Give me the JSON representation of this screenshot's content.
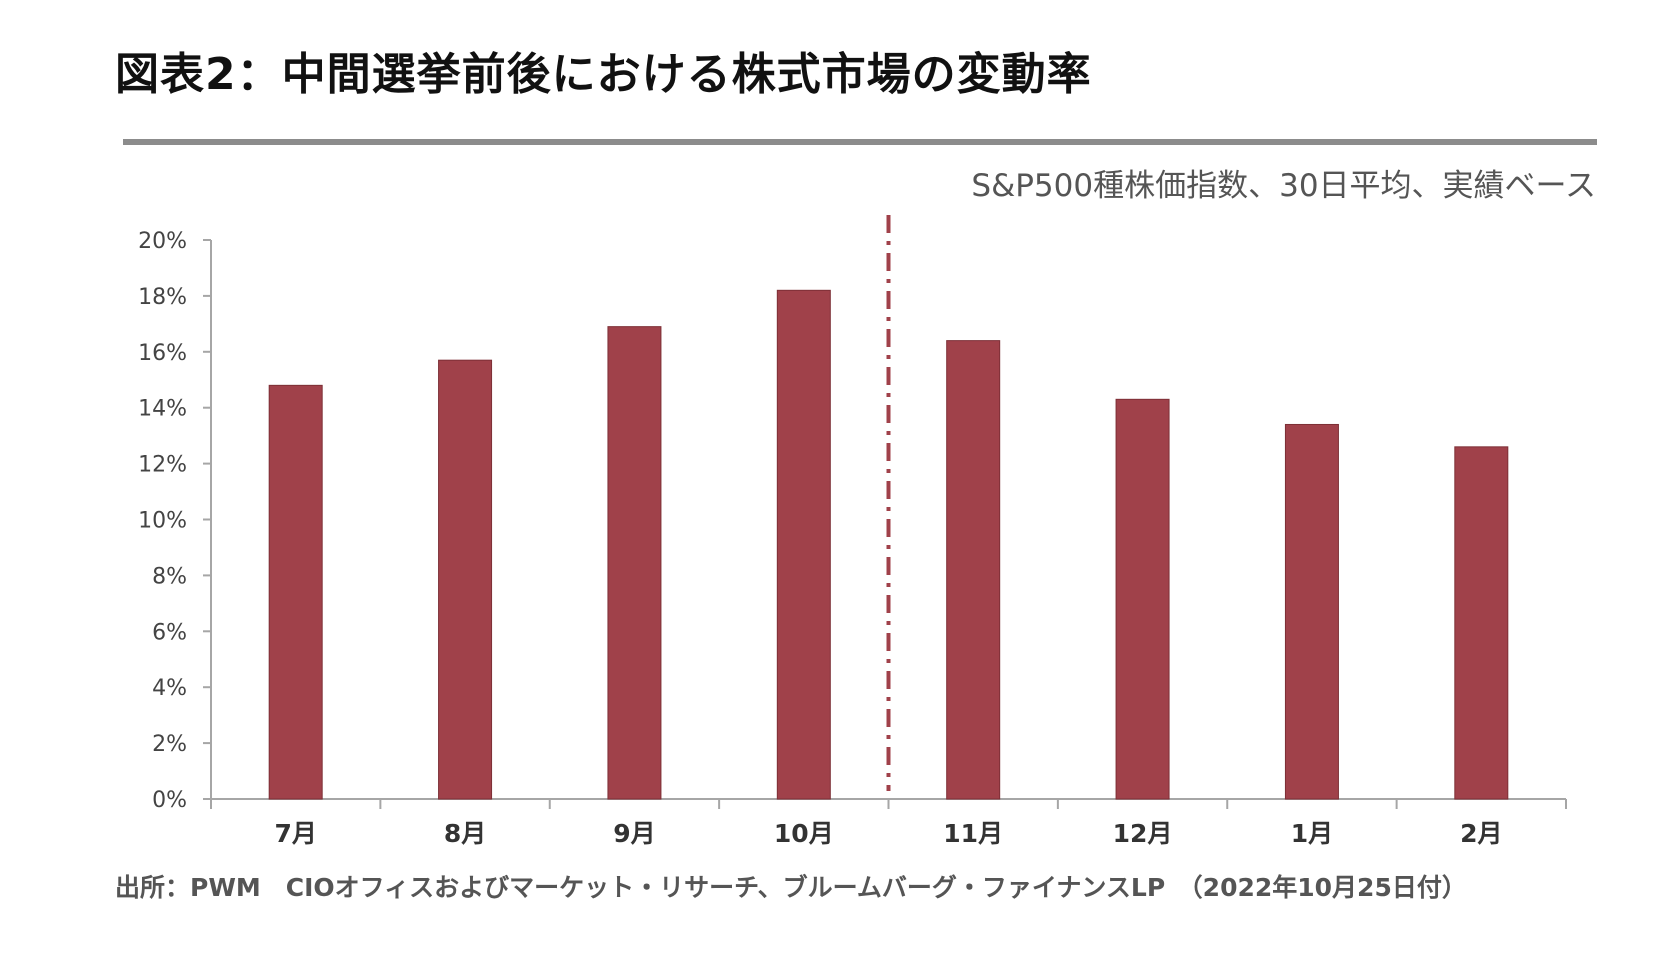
{
  "title": "図表2：中間選挙前後における株式市場の変動率",
  "subtitle": "S&P500種株価指数、30日平均、実績ベース",
  "source": "出所：PWM　CIOオフィスおよびマーケット・リサーチ、ブルームバーグ・ファイナンスLP　（2022年10月25日付）",
  "chart_data": {
    "type": "bar",
    "categories": [
      "7月",
      "8月",
      "9月",
      "10月",
      "11月",
      "12月",
      "1月",
      "2月"
    ],
    "values": [
      14.8,
      15.7,
      16.9,
      18.2,
      16.4,
      14.3,
      13.4,
      12.6
    ],
    "ylim": [
      0,
      20
    ],
    "yticks": [
      0,
      2,
      4,
      6,
      8,
      10,
      12,
      14,
      16,
      18,
      20
    ],
    "ytick_labels": [
      "0%",
      "2%",
      "4%",
      "6%",
      "8%",
      "10%",
      "12%",
      "14%",
      "16%",
      "18%",
      "20%"
    ],
    "divider_after_category": "10月",
    "bar_color": "#a0414a",
    "divider_color": "#a0414a",
    "axis_color": "#a6a6a6",
    "grid": false
  }
}
